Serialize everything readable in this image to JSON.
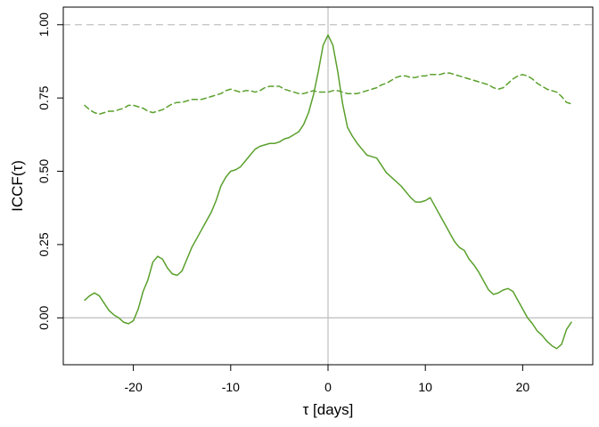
{
  "chart_data": {
    "type": "line",
    "title": "",
    "xlabel": "τ [days]",
    "ylabel": "ICCF(τ)",
    "xlim": [
      -27.2,
      27.2
    ],
    "ylim": [
      -0.16,
      1.06
    ],
    "x_ticks": [
      {
        "value": -20,
        "label": "-20"
      },
      {
        "value": -10,
        "label": "-10"
      },
      {
        "value": 0,
        "label": "0"
      },
      {
        "value": 10,
        "label": "10"
      },
      {
        "value": 20,
        "label": "20"
      }
    ],
    "y_ticks": [
      {
        "value": 0.0,
        "label": "0.00"
      },
      {
        "value": 0.25,
        "label": "0.25"
      },
      {
        "value": 0.5,
        "label": "0.50"
      },
      {
        "value": 0.75,
        "label": "0.75"
      },
      {
        "value": 1.0,
        "label": "1.00"
      }
    ],
    "reference_lines": [
      {
        "orientation": "horizontal",
        "value": 1.0,
        "style": "dashed",
        "color": "#c0c0c0"
      },
      {
        "orientation": "horizontal",
        "value": 0.0,
        "style": "solid",
        "color": "#bdbdbd"
      },
      {
        "orientation": "vertical",
        "value": 0.0,
        "style": "solid",
        "color": "#bdbdbd"
      }
    ],
    "grid": false,
    "legend": "none",
    "series": [
      {
        "style": "solid",
        "color": "#5aa02c",
        "x": [
          -25,
          -24.5,
          -24,
          -23.5,
          -23,
          -22.5,
          -22,
          -21.5,
          -21,
          -20.5,
          -20,
          -19.5,
          -19,
          -18.5,
          -18,
          -17.5,
          -17,
          -16.5,
          -16,
          -15.5,
          -15,
          -14.5,
          -14,
          -13.5,
          -13,
          -12.5,
          -12,
          -11.5,
          -11,
          -10.5,
          -10,
          -9.5,
          -9,
          -8.5,
          -8,
          -7.5,
          -7,
          -6.5,
          -6,
          -5.5,
          -5,
          -4.5,
          -4,
          -3.5,
          -3,
          -2.5,
          -2,
          -1.5,
          -1,
          -0.5,
          0,
          0.5,
          1,
          1.5,
          2,
          2.5,
          3,
          3.5,
          4,
          4.5,
          5,
          5.5,
          6,
          6.5,
          7,
          7.5,
          8,
          8.5,
          9,
          9.5,
          10,
          10.5,
          11,
          11.5,
          12,
          12.5,
          13,
          13.5,
          14,
          14.5,
          15,
          15.5,
          16,
          16.5,
          17,
          17.5,
          18,
          18.5,
          19,
          19.5,
          20,
          20.5,
          21,
          21.5,
          22,
          22.5,
          23,
          23.5,
          24,
          24.5,
          25
        ],
        "y": [
          0.06,
          0.075,
          0.085,
          0.075,
          0.05,
          0.025,
          0.01,
          0.0,
          -0.015,
          -0.02,
          -0.01,
          0.03,
          0.09,
          0.13,
          0.19,
          0.21,
          0.2,
          0.17,
          0.15,
          0.145,
          0.16,
          0.2,
          0.24,
          0.27,
          0.3,
          0.33,
          0.36,
          0.4,
          0.45,
          0.48,
          0.5,
          0.505,
          0.515,
          0.535,
          0.555,
          0.575,
          0.585,
          0.59,
          0.595,
          0.595,
          0.6,
          0.61,
          0.615,
          0.625,
          0.635,
          0.66,
          0.7,
          0.76,
          0.84,
          0.93,
          0.965,
          0.93,
          0.84,
          0.73,
          0.65,
          0.62,
          0.595,
          0.575,
          0.555,
          0.55,
          0.545,
          0.52,
          0.495,
          0.48,
          0.465,
          0.45,
          0.43,
          0.41,
          0.395,
          0.395,
          0.4,
          0.41,
          0.38,
          0.35,
          0.32,
          0.29,
          0.26,
          0.24,
          0.23,
          0.2,
          0.18,
          0.155,
          0.125,
          0.095,
          0.08,
          0.085,
          0.095,
          0.1,
          0.09,
          0.06,
          0.03,
          0.0,
          -0.02,
          -0.045,
          -0.06,
          -0.08,
          -0.095,
          -0.105,
          -0.09,
          -0.04,
          -0.015
        ]
      },
      {
        "style": "dashed",
        "color": "#5aa02c",
        "x": [
          -25,
          -24.5,
          -24,
          -23.5,
          -23,
          -22.5,
          -22,
          -21.5,
          -21,
          -20.5,
          -20,
          -19.5,
          -19,
          -18.5,
          -18,
          -17.5,
          -17,
          -16.5,
          -16,
          -15.5,
          -15,
          -14.5,
          -14,
          -13.5,
          -13,
          -12.5,
          -12,
          -11.5,
          -11,
          -10.5,
          -10,
          -9.5,
          -9,
          -8.5,
          -8,
          -7.5,
          -7,
          -6.5,
          -6,
          -5.5,
          -5,
          -4.5,
          -4,
          -3.5,
          -3,
          -2.5,
          -2,
          -1.5,
          -1,
          -0.5,
          0,
          0.5,
          1,
          1.5,
          2,
          2.5,
          3,
          3.5,
          4,
          4.5,
          5,
          5.5,
          6,
          6.5,
          7,
          7.5,
          8,
          8.5,
          9,
          9.5,
          10,
          10.5,
          11,
          11.5,
          12,
          12.5,
          13,
          13.5,
          14,
          14.5,
          15,
          15.5,
          16,
          16.5,
          17,
          17.5,
          18,
          18.5,
          19,
          19.5,
          20,
          20.5,
          21,
          21.5,
          22,
          22.5,
          23,
          23.5,
          24,
          24.5,
          25
        ],
        "y": [
          0.725,
          0.71,
          0.7,
          0.695,
          0.7,
          0.705,
          0.705,
          0.71,
          0.715,
          0.725,
          0.725,
          0.72,
          0.715,
          0.705,
          0.7,
          0.705,
          0.71,
          0.72,
          0.73,
          0.735,
          0.735,
          0.74,
          0.745,
          0.745,
          0.745,
          0.75,
          0.755,
          0.76,
          0.765,
          0.775,
          0.78,
          0.775,
          0.77,
          0.775,
          0.775,
          0.77,
          0.775,
          0.785,
          0.79,
          0.79,
          0.79,
          0.78,
          0.775,
          0.77,
          0.765,
          0.765,
          0.77,
          0.775,
          0.77,
          0.77,
          0.77,
          0.775,
          0.775,
          0.77,
          0.765,
          0.765,
          0.765,
          0.77,
          0.775,
          0.78,
          0.785,
          0.795,
          0.8,
          0.81,
          0.82,
          0.825,
          0.825,
          0.82,
          0.82,
          0.825,
          0.825,
          0.83,
          0.83,
          0.83,
          0.835,
          0.835,
          0.83,
          0.825,
          0.82,
          0.815,
          0.81,
          0.805,
          0.8,
          0.795,
          0.785,
          0.78,
          0.785,
          0.8,
          0.815,
          0.825,
          0.83,
          0.825,
          0.815,
          0.8,
          0.79,
          0.78,
          0.775,
          0.77,
          0.755,
          0.735,
          0.73
        ]
      }
    ]
  }
}
